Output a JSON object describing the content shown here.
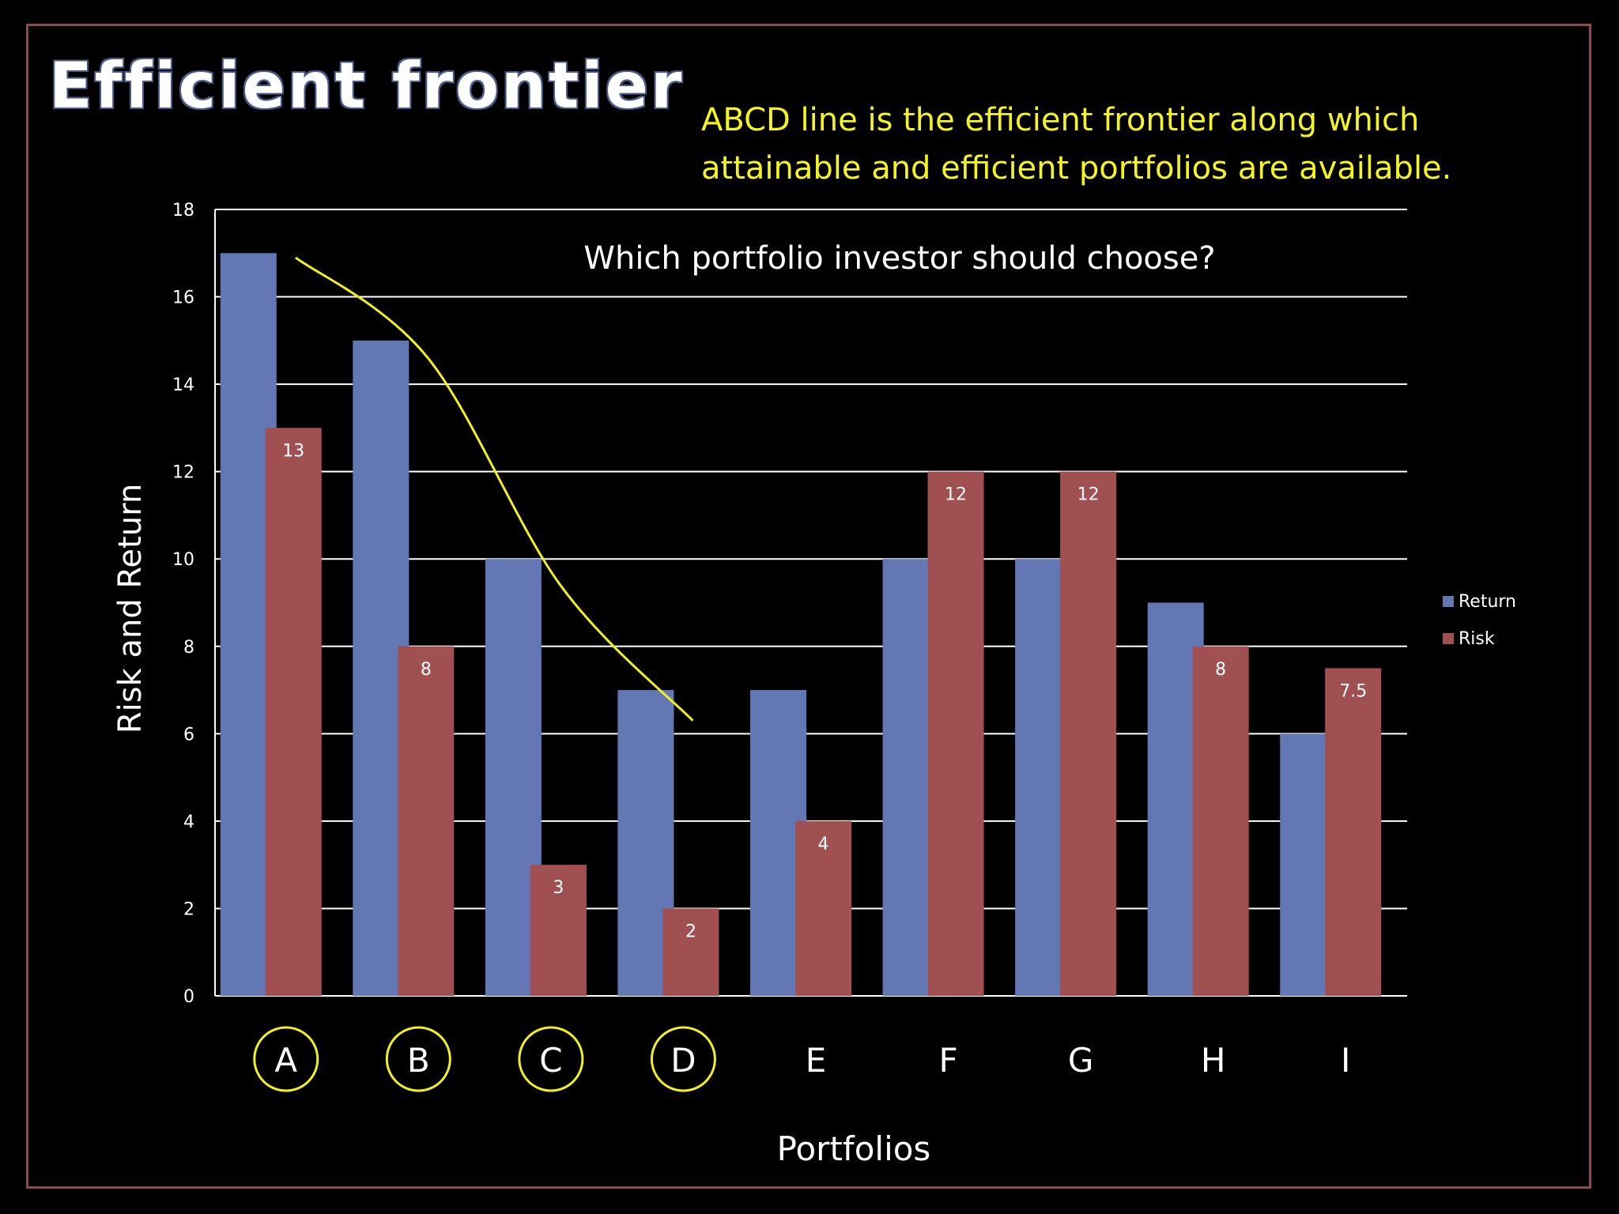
{
  "slide": {
    "title": "Efficient frontier",
    "note": "ABCD line is the efficient frontier along which attainable and efficient portfolios are available."
  },
  "chart_data": {
    "type": "bar",
    "title": "Which portfolio investor should choose?",
    "xlabel": "Portfolios",
    "ylabel": "Risk and Return",
    "ylim": [
      0,
      18
    ],
    "yticks": [
      0,
      2,
      4,
      6,
      8,
      10,
      12,
      14,
      16,
      18
    ],
    "categories": [
      "A",
      "B",
      "C",
      "D",
      "E",
      "F",
      "G",
      "H",
      "I"
    ],
    "circled_categories": [
      "A",
      "B",
      "C",
      "D"
    ],
    "series": [
      {
        "name": "Return",
        "color": "#6377b5",
        "values": [
          17,
          15,
          10,
          7,
          7,
          10,
          10,
          9,
          6
        ]
      },
      {
        "name": "Risk",
        "color": "#a05050",
        "values": [
          13,
          8,
          3,
          2,
          4,
          12,
          12,
          8,
          7.5
        ],
        "data_labels": [
          "13",
          "8",
          "3",
          "2",
          "4",
          "12",
          "12",
          "8",
          "7.5"
        ]
      }
    ],
    "frontier_line": {
      "color": "#f0f01e",
      "through": [
        "A",
        "B",
        "C",
        "D"
      ],
      "points": [
        [
          0,
          16.9
        ],
        [
          1,
          14.6
        ],
        [
          2,
          9.4
        ],
        [
          3,
          6.3
        ]
      ]
    },
    "legend": "right",
    "grid": true
  }
}
